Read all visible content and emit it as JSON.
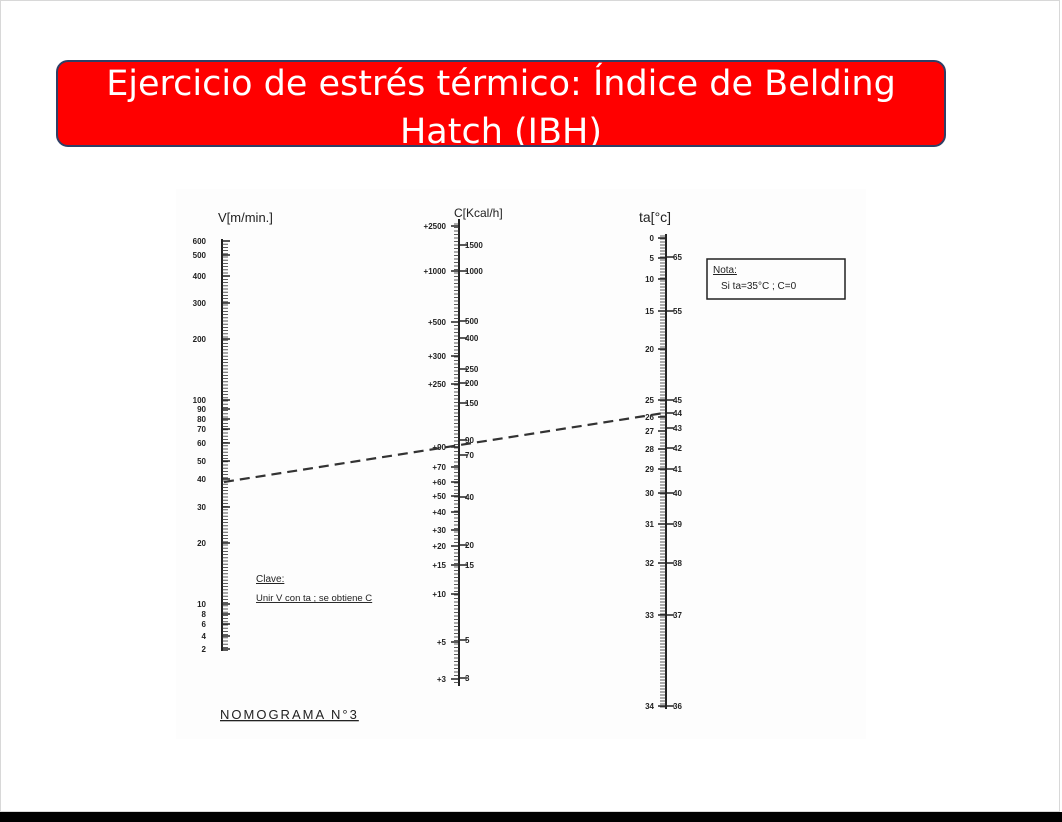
{
  "slide": {
    "title": "Ejercicio de estrés térmico: Índice de Belding Hatch (IBH)"
  },
  "nomogram": {
    "caption": "NOMOGRAMA N°3",
    "axis_v": {
      "label": "V[m/min.]",
      "ticks": [
        "600",
        "500",
        "400",
        "300",
        "200",
        "100",
        "90",
        "80",
        "70",
        "60",
        "50",
        "40",
        "30",
        "20",
        "10",
        "8",
        "6",
        "4",
        "2"
      ]
    },
    "axis_c": {
      "label": "C[Kcal/h]",
      "left_ticks": [
        "+2500",
        "+1000",
        "+500",
        "+300",
        "+250",
        "+90",
        "+70",
        "+60",
        "+50",
        "+40",
        "+30",
        "+20",
        "+15",
        "+10",
        "+5",
        "+3"
      ],
      "right_ticks": [
        "1500",
        "1000",
        "500",
        "400",
        "250",
        "200",
        "150",
        "90",
        "70",
        "40",
        "20",
        "15",
        "5",
        "3"
      ]
    },
    "axis_ta": {
      "label": "ta[°c]",
      "left_ticks": [
        "0",
        "5",
        "10",
        "15",
        "20",
        "25",
        "26",
        "27",
        "28",
        "29",
        "30",
        "31",
        "32",
        "33",
        "34"
      ],
      "right_ticks": [
        "65",
        "55",
        "45",
        "44",
        "43",
        "42",
        "41",
        "40",
        "39",
        "38",
        "37",
        "36"
      ]
    },
    "note": {
      "title": "Nota:",
      "text": "Si ta=35°C ; C=0"
    },
    "key": {
      "title": "Clave:",
      "text": "Unir V con ta ; se obtiene C"
    }
  }
}
